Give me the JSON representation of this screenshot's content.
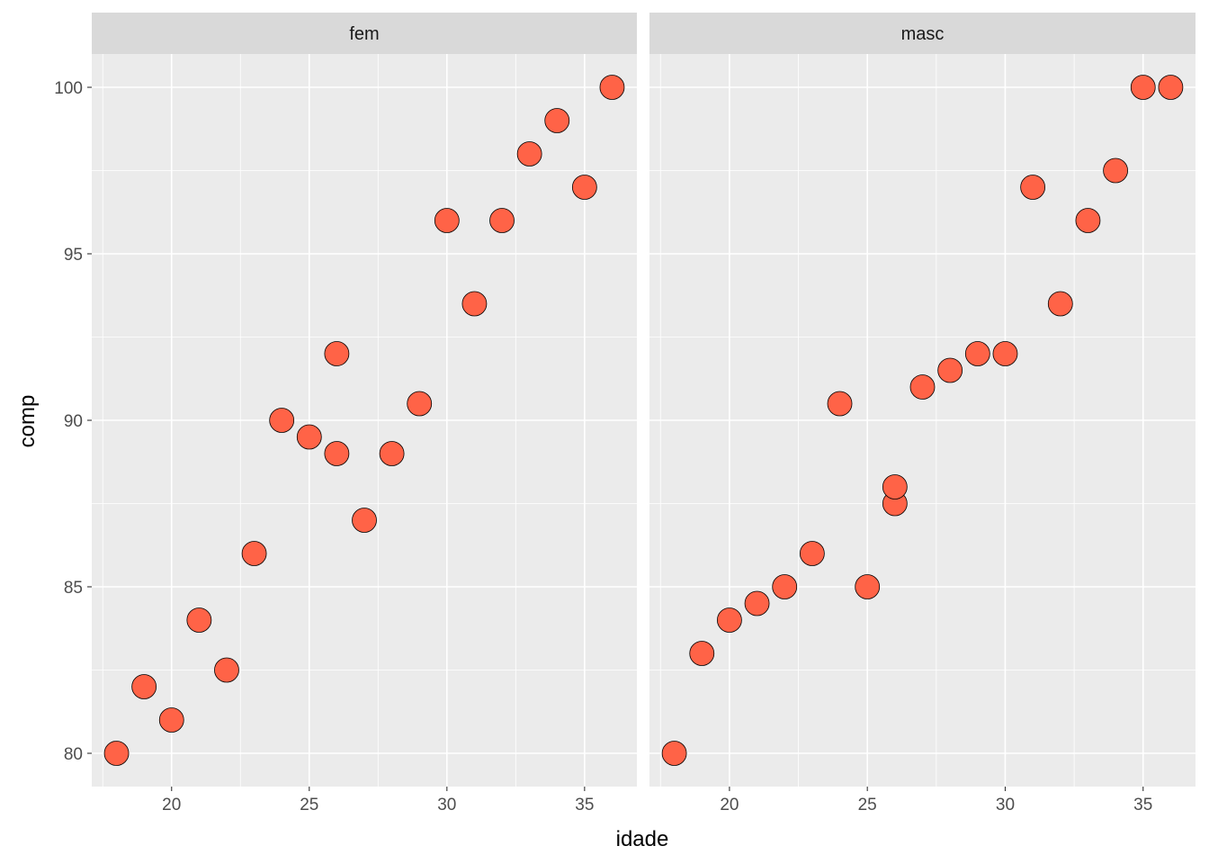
{
  "chart_data": {
    "type": "scatter",
    "xlabel": "idade",
    "ylabel": "comp",
    "xlim": [
      17.1,
      36.9
    ],
    "ylim": [
      79.0,
      101.0
    ],
    "x_ticks": [
      20,
      25,
      30,
      35
    ],
    "y_ticks": [
      80,
      85,
      90,
      95,
      100
    ],
    "grid": true,
    "point_color": "#FF6347",
    "panels": [
      {
        "name": "fem",
        "points": [
          {
            "x": 18,
            "y": 80
          },
          {
            "x": 19,
            "y": 82
          },
          {
            "x": 20,
            "y": 81
          },
          {
            "x": 21,
            "y": 84
          },
          {
            "x": 22,
            "y": 82.5
          },
          {
            "x": 23,
            "y": 86
          },
          {
            "x": 24,
            "y": 90
          },
          {
            "x": 25,
            "y": 89.5
          },
          {
            "x": 26,
            "y": 92
          },
          {
            "x": 26,
            "y": 89
          },
          {
            "x": 27,
            "y": 87
          },
          {
            "x": 28,
            "y": 89
          },
          {
            "x": 29,
            "y": 90.5
          },
          {
            "x": 30,
            "y": 96
          },
          {
            "x": 31,
            "y": 93.5
          },
          {
            "x": 32,
            "y": 96
          },
          {
            "x": 33,
            "y": 98
          },
          {
            "x": 34,
            "y": 99
          },
          {
            "x": 35,
            "y": 97
          },
          {
            "x": 36,
            "y": 100
          }
        ]
      },
      {
        "name": "masc",
        "points": [
          {
            "x": 18,
            "y": 80
          },
          {
            "x": 19,
            "y": 83
          },
          {
            "x": 20,
            "y": 84
          },
          {
            "x": 21,
            "y": 84.5
          },
          {
            "x": 22,
            "y": 85
          },
          {
            "x": 23,
            "y": 86
          },
          {
            "x": 24,
            "y": 90.5
          },
          {
            "x": 25,
            "y": 85
          },
          {
            "x": 26,
            "y": 87.5
          },
          {
            "x": 26,
            "y": 88
          },
          {
            "x": 27,
            "y": 91
          },
          {
            "x": 28,
            "y": 91.5
          },
          {
            "x": 29,
            "y": 92
          },
          {
            "x": 30,
            "y": 92
          },
          {
            "x": 31,
            "y": 97
          },
          {
            "x": 32,
            "y": 93.5
          },
          {
            "x": 33,
            "y": 96
          },
          {
            "x": 34,
            "y": 97.5
          },
          {
            "x": 35,
            "y": 100
          },
          {
            "x": 36,
            "y": 100
          }
        ]
      }
    ]
  }
}
